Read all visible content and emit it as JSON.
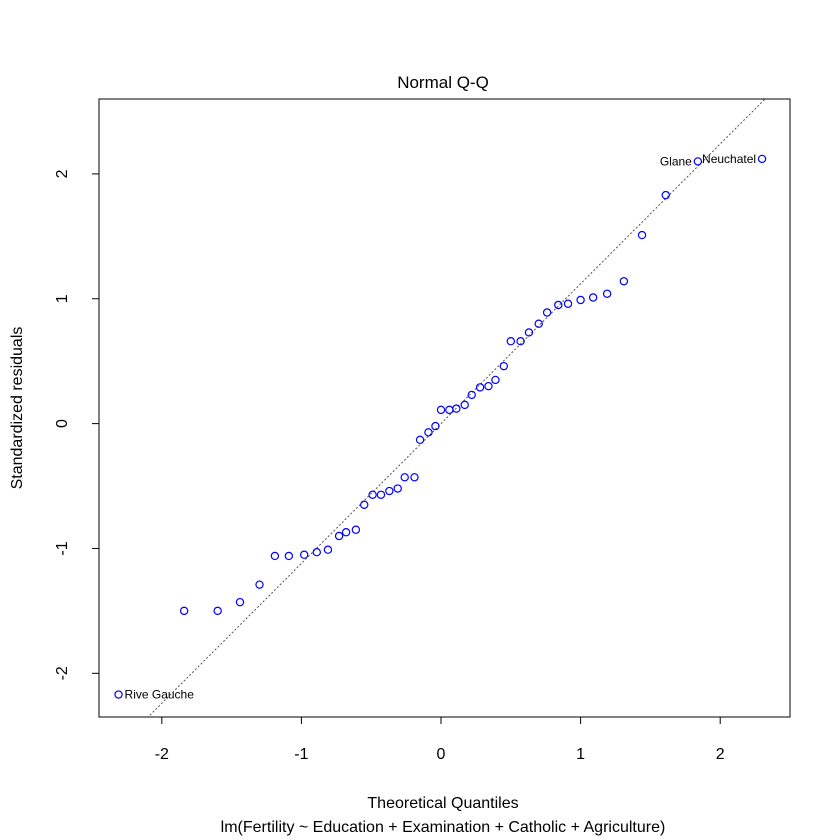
{
  "chart_data": {
    "type": "scatter",
    "title": "Normal Q-Q",
    "xlabel": "Theoretical Quantiles",
    "subtitle": "lm(Fertility ~ Education + Examination + Catholic + Agriculture)",
    "ylabel": "Standardized residuals",
    "xlim": [
      -2.45,
      2.5
    ],
    "ylim": [
      -2.35,
      2.6
    ],
    "x_ticks": [
      -2,
      -1,
      0,
      1,
      2
    ],
    "y_ticks": [
      -2,
      -1,
      0,
      1,
      2
    ],
    "grid": false,
    "point_color": "#0000ff",
    "reference_line": {
      "slope": 1.12,
      "intercept": 0.0,
      "style": "dotted",
      "color": "#555555"
    },
    "points": [
      {
        "x": -2.31,
        "y": -2.17
      },
      {
        "x": -1.84,
        "y": -1.5
      },
      {
        "x": -1.6,
        "y": -1.5
      },
      {
        "x": -1.44,
        "y": -1.43
      },
      {
        "x": -1.3,
        "y": -1.29
      },
      {
        "x": -1.19,
        "y": -1.06
      },
      {
        "x": -1.09,
        "y": -1.06
      },
      {
        "x": -0.98,
        "y": -1.05
      },
      {
        "x": -0.89,
        "y": -1.03
      },
      {
        "x": -0.81,
        "y": -1.01
      },
      {
        "x": -0.73,
        "y": -0.9
      },
      {
        "x": -0.68,
        "y": -0.87
      },
      {
        "x": -0.61,
        "y": -0.85
      },
      {
        "x": -0.55,
        "y": -0.65
      },
      {
        "x": -0.49,
        "y": -0.57
      },
      {
        "x": -0.43,
        "y": -0.57
      },
      {
        "x": -0.37,
        "y": -0.54
      },
      {
        "x": -0.31,
        "y": -0.52
      },
      {
        "x": -0.26,
        "y": -0.43
      },
      {
        "x": -0.19,
        "y": -0.43
      },
      {
        "x": -0.15,
        "y": -0.13
      },
      {
        "x": -0.09,
        "y": -0.07
      },
      {
        "x": -0.04,
        "y": -0.02
      },
      {
        "x": 0.0,
        "y": 0.11
      },
      {
        "x": 0.06,
        "y": 0.11
      },
      {
        "x": 0.11,
        "y": 0.12
      },
      {
        "x": 0.17,
        "y": 0.15
      },
      {
        "x": 0.22,
        "y": 0.23
      },
      {
        "x": 0.28,
        "y": 0.29
      },
      {
        "x": 0.34,
        "y": 0.3
      },
      {
        "x": 0.39,
        "y": 0.35
      },
      {
        "x": 0.45,
        "y": 0.46
      },
      {
        "x": 0.5,
        "y": 0.66
      },
      {
        "x": 0.57,
        "y": 0.66
      },
      {
        "x": 0.63,
        "y": 0.73
      },
      {
        "x": 0.7,
        "y": 0.8
      },
      {
        "x": 0.76,
        "y": 0.89
      },
      {
        "x": 0.84,
        "y": 0.95
      },
      {
        "x": 0.91,
        "y": 0.96
      },
      {
        "x": 1.0,
        "y": 0.99
      },
      {
        "x": 1.09,
        "y": 1.01
      },
      {
        "x": 1.19,
        "y": 1.04
      },
      {
        "x": 1.31,
        "y": 1.14
      },
      {
        "x": 1.44,
        "y": 1.51
      },
      {
        "x": 1.61,
        "y": 1.83
      },
      {
        "x": 1.84,
        "y": 2.1,
        "label": "Glane"
      },
      {
        "x": 2.3,
        "y": 2.12,
        "label": "Neuchatel"
      }
    ],
    "annotations": [
      {
        "text": "Rive Gauche",
        "x": -2.31,
        "y": -2.17,
        "anchor": "start"
      },
      {
        "text": "Glane",
        "x": 1.84,
        "y": 2.1,
        "anchor": "end"
      },
      {
        "text": "Neuchatel",
        "x": 2.3,
        "y": 2.12,
        "anchor": "end"
      }
    ]
  }
}
